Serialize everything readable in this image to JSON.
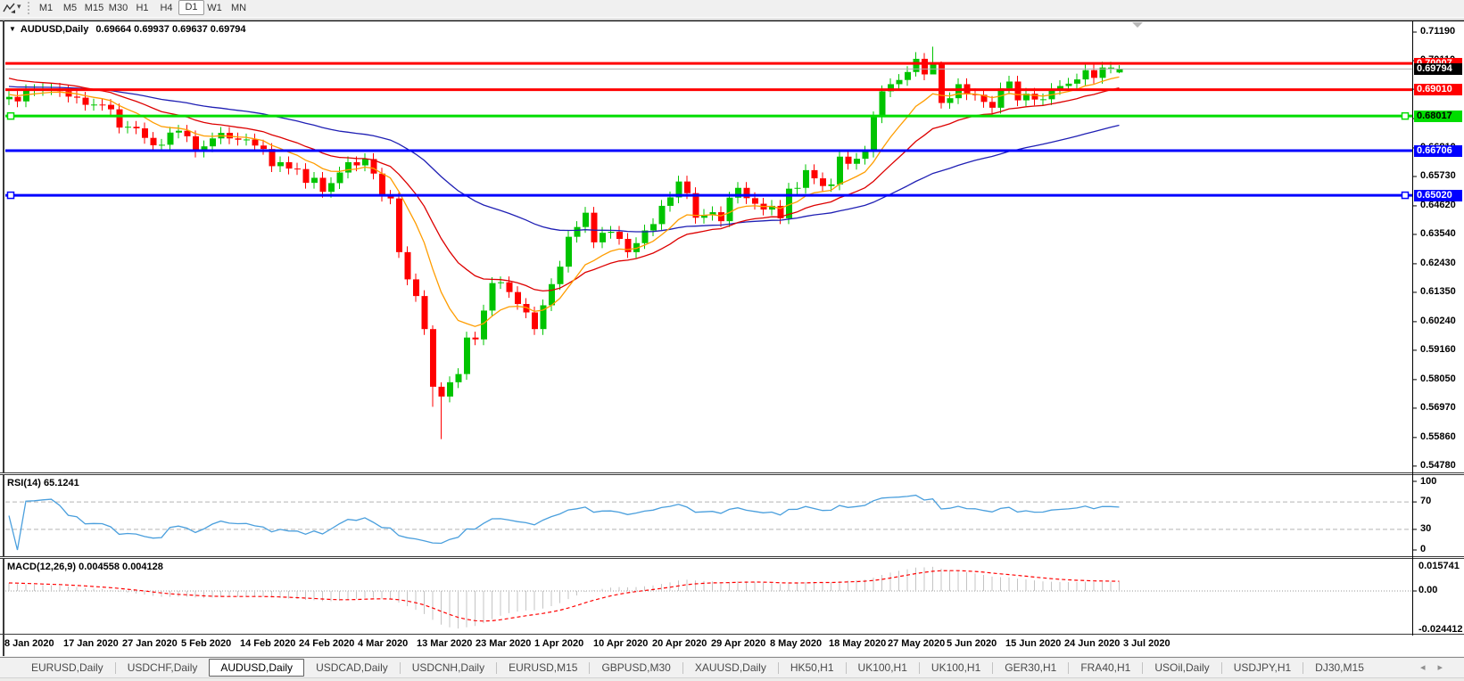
{
  "toolbar": {
    "tool_icon": "zigzag-line-tool",
    "dropdown": "▾",
    "timeframes": [
      {
        "label": "M1",
        "active": false
      },
      {
        "label": "M5",
        "active": false
      },
      {
        "label": "M15",
        "active": false
      },
      {
        "label": "M30",
        "active": false
      },
      {
        "label": "H1",
        "active": false
      },
      {
        "label": "H4",
        "active": false
      },
      {
        "label": "D1",
        "active": true
      },
      {
        "label": "W1",
        "active": false
      },
      {
        "label": "MN",
        "active": false
      }
    ]
  },
  "chart": {
    "title": {
      "dropdown": "▼",
      "symbol": "AUDUSD,Daily",
      "ohlc": "0.69664 0.69937 0.69637 0.69794"
    },
    "price_ticks": [
      "0.71190",
      "0.70110",
      "0.69030",
      "0.67920",
      "0.66810",
      "0.65730",
      "0.64620",
      "0.63540",
      "0.62430",
      "0.61350",
      "0.60240",
      "0.59160",
      "0.58050",
      "0.56970",
      "0.55860",
      "0.54780"
    ],
    "price_labels": [
      {
        "text": "0.70007",
        "price": 0.70007,
        "bg": "#ff0000",
        "fg": "#ffffff",
        "name": "price-label-resistance-1"
      },
      {
        "text": "0.69794",
        "price": 0.69794,
        "bg": "#000000",
        "fg": "#ffffff",
        "name": "price-label-current"
      },
      {
        "text": "0.69010",
        "price": 0.6901,
        "bg": "#ff0000",
        "fg": "#ffffff",
        "name": "price-label-resistance-2"
      },
      {
        "text": "0.68017",
        "price": 0.68017,
        "bg": "#00dd00",
        "fg": "#000000",
        "name": "price-label-support-green"
      },
      {
        "text": "0.66706",
        "price": 0.66706,
        "bg": "#0000ff",
        "fg": "#ffffff",
        "name": "price-label-support-blue-1"
      },
      {
        "text": "0.65020",
        "price": 0.6502,
        "bg": "#0000ff",
        "fg": "#ffffff",
        "name": "price-label-support-blue-2"
      }
    ]
  },
  "panes": {
    "rsi_label": "RSI(14) 65.1241",
    "macd_label": "MACD(12,26,9) 0.004558 0.004128"
  },
  "chart_data": {
    "type": "candlestick",
    "symbol": "AUDUSD",
    "timeframe": "Daily",
    "title": "AUDUSD,Daily",
    "y_range": [
      0.5454,
      0.7159
    ],
    "colors": {
      "up": "#00c400",
      "down": "#ff0000",
      "current_line": "#b0b0b0"
    },
    "x_labels": [
      "8 Jan 2020",
      "17 Jan 2020",
      "27 Jan 2020",
      "5 Feb 2020",
      "14 Feb 2020",
      "24 Feb 2020",
      "4 Mar 2020",
      "13 Mar 2020",
      "23 Mar 2020",
      "1 Apr 2020",
      "10 Apr 2020",
      "20 Apr 2020",
      "29 Apr 2020",
      "8 May 2020",
      "18 May 2020",
      "27 May 2020",
      "5 Jun 2020",
      "15 Jun 2020",
      "24 Jun 2020",
      "3 Jul 2020"
    ],
    "first_open": 0.6865,
    "wick_pad": 0.0022,
    "closes": [
      0.6874,
      0.6857,
      0.6899,
      0.69,
      0.6903,
      0.6905,
      0.6896,
      0.6875,
      0.6871,
      0.6844,
      0.6845,
      0.6844,
      0.6827,
      0.6758,
      0.6761,
      0.6755,
      0.6719,
      0.6691,
      0.6693,
      0.6739,
      0.6746,
      0.6725,
      0.6667,
      0.6687,
      0.6717,
      0.6738,
      0.6717,
      0.6712,
      0.6713,
      0.669,
      0.6677,
      0.6612,
      0.6627,
      0.6603,
      0.6601,
      0.6549,
      0.6568,
      0.6515,
      0.6548,
      0.6588,
      0.6627,
      0.6615,
      0.6639,
      0.6584,
      0.65,
      0.649,
      0.6287,
      0.6184,
      0.6121,
      0.5996,
      0.5778,
      0.5741,
      0.5795,
      0.5826,
      0.5964,
      0.5957,
      0.6066,
      0.617,
      0.6173,
      0.6136,
      0.6091,
      0.6059,
      0.5996,
      0.6086,
      0.6166,
      0.6232,
      0.6345,
      0.6382,
      0.6436,
      0.6324,
      0.636,
      0.6364,
      0.6337,
      0.6287,
      0.6321,
      0.6369,
      0.6393,
      0.6462,
      0.6494,
      0.6554,
      0.651,
      0.6417,
      0.6428,
      0.6438,
      0.6404,
      0.6493,
      0.653,
      0.6491,
      0.647,
      0.6448,
      0.6462,
      0.6415,
      0.6527,
      0.653,
      0.6597,
      0.6566,
      0.6537,
      0.6543,
      0.6648,
      0.6621,
      0.664,
      0.6667,
      0.6797,
      0.6895,
      0.6922,
      0.6938,
      0.6968,
      0.7018,
      0.6959,
      0.7002,
      0.6851,
      0.6869,
      0.6922,
      0.6884,
      0.6882,
      0.6855,
      0.6833,
      0.6906,
      0.6932,
      0.6861,
      0.6886,
      0.6864,
      0.6865,
      0.6904,
      0.6915,
      0.6924,
      0.694,
      0.6975,
      0.6946,
      0.6985,
      0.6985,
      0.6979
    ],
    "last_ohlc": {
      "open": 0.69664,
      "high": 0.69937,
      "low": 0.69637,
      "close": 0.69794
    },
    "wick_overrides": {
      "50": [
        0.601,
        0.5702
      ],
      "51": [
        0.5795,
        0.558
      ],
      "107": [
        0.7043,
        0.6951
      ],
      "109": [
        0.7064,
        0.699
      ],
      "110": [
        0.7008,
        0.683
      ]
    },
    "hlines": [
      {
        "price": 0.70007,
        "color": "#ff0000",
        "width": 3,
        "selected": false
      },
      {
        "price": 0.6901,
        "color": "#ff0000",
        "width": 3,
        "selected": false
      },
      {
        "price": 0.68017,
        "color": "#00dd00",
        "width": 3,
        "selected": true
      },
      {
        "price": 0.66706,
        "color": "#0000ff",
        "width": 3,
        "selected": false
      },
      {
        "price": 0.6502,
        "color": "#0000ff",
        "width": 3,
        "selected": true
      }
    ],
    "current_price": 0.69794,
    "moving_averages": [
      {
        "type": "ema",
        "period": 10,
        "color": "#ff9d00",
        "seed": 0.6885
      },
      {
        "type": "ema",
        "period": 21,
        "color": "#dd0000",
        "seed": 0.6952
      },
      {
        "type": "ema",
        "period": 55,
        "color": "#1f1fb4",
        "seed": 0.6915
      }
    ],
    "rsi": {
      "period": 14,
      "value": 65.1241,
      "color": "#4a9fdd",
      "levels": [
        70,
        30
      ],
      "axis_labels": [
        "100",
        "70",
        "30",
        "0"
      ],
      "range": [
        0,
        100
      ]
    },
    "macd": {
      "fast": 12,
      "slow": 26,
      "signal_period": 9,
      "macd_value": 0.004558,
      "signal_value": 0.004128,
      "seed_fast": 0.69,
      "seed_slow": 0.6845,
      "histogram_color": "#c4c4c4",
      "signal_color": "#ff0000",
      "axis_labels": [
        "0.015741",
        "0.00",
        "-0.024412"
      ]
    }
  },
  "tabs": {
    "items": [
      {
        "label": "EURUSD,Daily",
        "active": false
      },
      {
        "label": "USDCHF,Daily",
        "active": false
      },
      {
        "label": "AUDUSD,Daily",
        "active": true
      },
      {
        "label": "USDCAD,Daily",
        "active": false
      },
      {
        "label": "USDCNH,Daily",
        "active": false
      },
      {
        "label": "EURUSD,M15",
        "active": false
      },
      {
        "label": "GBPUSD,M30",
        "active": false
      },
      {
        "label": "XAUUSD,Daily",
        "active": false
      },
      {
        "label": "HK50,H1",
        "active": false
      },
      {
        "label": "UK100,H1",
        "active": false
      },
      {
        "label": "UK100,H1",
        "active": false
      },
      {
        "label": "GER30,H1",
        "active": false
      },
      {
        "label": "FRA40,H1",
        "active": false
      },
      {
        "label": "USOil,Daily",
        "active": false
      },
      {
        "label": "USDJPY,H1",
        "active": false
      },
      {
        "label": "DJ30,M15",
        "active": false
      }
    ],
    "prev_arrow": "◂",
    "next_arrow": "▸"
  }
}
